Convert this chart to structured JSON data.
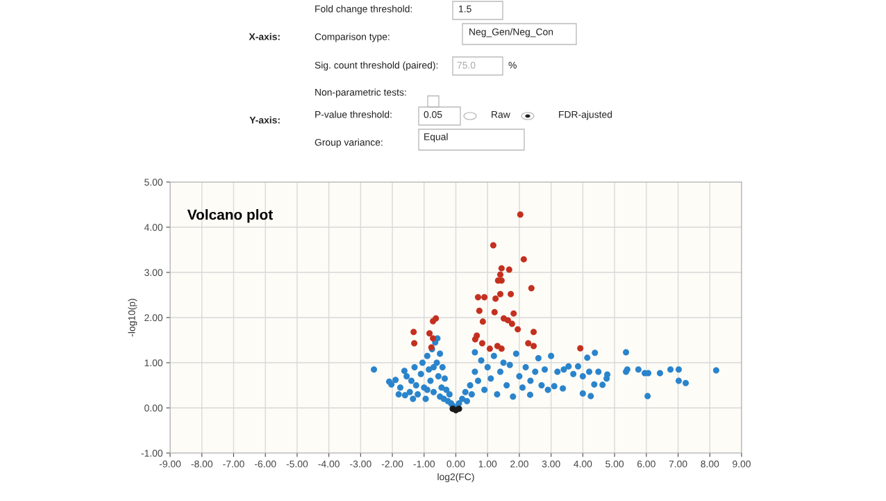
{
  "chart_data": {
    "type": "scatter",
    "title": "Volcano plot",
    "xlabel": "log2(FC)",
    "ylabel": "-log10(p)",
    "xlim": [
      -9,
      9
    ],
    "ylim": [
      -1,
      5
    ],
    "xticks": [
      {
        "value": -9,
        "label": "-9.00"
      },
      {
        "value": -8,
        "label": "-8.00"
      },
      {
        "value": -7,
        "label": "-7.00"
      },
      {
        "value": -6,
        "label": "-6.00"
      },
      {
        "value": -5,
        "label": "-5.00"
      },
      {
        "value": -4,
        "label": "-4.00"
      },
      {
        "value": -3,
        "label": "-3.00"
      },
      {
        "value": -2,
        "label": "-2.00"
      },
      {
        "value": -1,
        "label": "-1.00"
      },
      {
        "value": 0,
        "label": "0.00"
      },
      {
        "value": 1,
        "label": "1.00"
      },
      {
        "value": 2,
        "label": "2.00"
      },
      {
        "value": 3,
        "label": "3.00"
      },
      {
        "value": 4,
        "label": "4.00"
      },
      {
        "value": 5,
        "label": "5.00"
      },
      {
        "value": 6,
        "label": "6.00"
      },
      {
        "value": 7,
        "label": "7.00"
      },
      {
        "value": 8,
        "label": "8.00"
      },
      {
        "value": 9,
        "label": "9.00"
      }
    ],
    "yticks": [
      {
        "value": -1,
        "label": "-1.00"
      },
      {
        "value": 0,
        "label": "0.00"
      },
      {
        "value": 1,
        "label": "1.00"
      },
      {
        "value": 2,
        "label": "2.00"
      },
      {
        "value": 3,
        "label": "3.00"
      },
      {
        "value": 4,
        "label": "4.00"
      },
      {
        "value": 5,
        "label": "5.00"
      }
    ],
    "grid": true,
    "marker": "circle",
    "annotations": [
      "X-axis:",
      "Fold change threshold:",
      "1.5",
      "Comparison type:",
      "Neg_Gen/Neg_Con",
      "Sig. count threshold (paired):",
      "75.0",
      "%",
      "Non-parametric tests:",
      "Y-axis:",
      "P-value threshold:",
      "0.05",
      "Raw",
      "FDR-ajusted",
      "Group variance:",
      "Equal"
    ],
    "series": [
      {
        "color": "#2a84cc",
        "x": [
          -2.58,
          -2.1,
          -2.03,
          -1.9,
          -1.75,
          -1.62,
          -1.55,
          -1.6,
          -1.45,
          -1.4,
          -1.3,
          -1.25,
          -1.2,
          -1.1,
          -1.05,
          -1.0,
          -0.95,
          -0.9,
          -0.85,
          -0.8,
          -0.75,
          -0.7,
          -0.65,
          -0.6,
          -0.58,
          -0.55,
          -0.5,
          -0.45,
          -0.42,
          -0.38,
          -0.35,
          -0.3,
          -0.25,
          -0.2,
          -0.15,
          -0.1,
          -1.8,
          -1.35,
          -0.9,
          -0.7,
          -0.5,
          0.05,
          0.1,
          0.2,
          0.3,
          0.35,
          0.45,
          0.5,
          0.6,
          0.6,
          0.7,
          0.8,
          0.9,
          1.0,
          1.1,
          1.2,
          1.3,
          1.4,
          1.5,
          1.6,
          1.7,
          1.8,
          1.9,
          2.0,
          2.1,
          2.2,
          2.35,
          2.34,
          2.5,
          2.6,
          2.7,
          2.8,
          2.9,
          3.0,
          3.1,
          3.2,
          3.37,
          3.4,
          3.55,
          3.7,
          3.85,
          4.0,
          4.0,
          4.14,
          4.25,
          4.2,
          4.36,
          4.38,
          4.49,
          4.62,
          4.75,
          4.77,
          5.36,
          5.4,
          5.36,
          5.75,
          5.95,
          6.06,
          6.04,
          6.43,
          6.76,
          7.02,
          7.02,
          7.24,
          8.2
        ],
        "values": [
          0.85,
          0.58,
          0.52,
          0.62,
          0.45,
          0.82,
          0.7,
          0.28,
          0.35,
          0.6,
          0.9,
          0.5,
          0.3,
          0.75,
          1.0,
          0.45,
          0.2,
          1.15,
          0.85,
          0.6,
          1.3,
          0.35,
          1.45,
          1.0,
          1.54,
          0.7,
          1.2,
          0.45,
          0.9,
          0.2,
          0.65,
          0.4,
          0.15,
          0.3,
          0.1,
          0.05,
          0.3,
          0.2,
          0.4,
          0.9,
          0.25,
          0.02,
          0.1,
          0.2,
          0.35,
          0.15,
          0.5,
          0.3,
          1.23,
          0.8,
          0.6,
          1.05,
          0.4,
          0.9,
          0.65,
          1.15,
          0.3,
          0.8,
          1.0,
          0.5,
          0.95,
          0.25,
          1.2,
          0.7,
          0.45,
          0.9,
          0.6,
          0.29,
          0.8,
          1.1,
          0.5,
          0.85,
          0.4,
          1.15,
          0.48,
          0.8,
          0.43,
          0.85,
          0.92,
          0.75,
          0.92,
          0.32,
          0.7,
          1.11,
          0.26,
          0.8,
          0.52,
          1.22,
          0.8,
          0.51,
          0.65,
          0.74,
          1.23,
          0.85,
          0.8,
          0.85,
          0.77,
          0.77,
          0.26,
          0.77,
          0.85,
          0.85,
          0.6,
          0.55,
          0.83
        ]
      },
      {
        "color": "#c4301f",
        "x": [
          2.03,
          1.18,
          2.14,
          1.44,
          1.68,
          1.4,
          1.33,
          1.44,
          2.38,
          1.4,
          1.73,
          0.7,
          0.9,
          1.25,
          0.74,
          1.22,
          1.82,
          1.51,
          1.64,
          1.77,
          0.85,
          1.95,
          2.45,
          0.66,
          0.61,
          0.83,
          2.28,
          2.45,
          1.07,
          1.31,
          1.44,
          3.92,
          -1.33,
          -1.31,
          -0.72,
          -0.63,
          -0.83,
          -0.72,
          -0.77
        ],
        "values": [
          4.28,
          3.6,
          3.29,
          3.09,
          3.06,
          2.95,
          2.82,
          2.82,
          2.65,
          2.52,
          2.52,
          2.45,
          2.45,
          2.42,
          2.15,
          2.12,
          2.09,
          1.98,
          1.94,
          1.86,
          1.91,
          1.74,
          1.68,
          1.6,
          1.52,
          1.43,
          1.43,
          1.37,
          1.31,
          1.37,
          1.31,
          1.32,
          1.68,
          1.43,
          1.92,
          1.98,
          1.65,
          1.54,
          1.34
        ]
      },
      {
        "color": "#1a1a1a",
        "x": [
          -0.1,
          0.0,
          0.1
        ],
        "values": [
          -0.02,
          -0.05,
          -0.02
        ]
      }
    ]
  }
}
